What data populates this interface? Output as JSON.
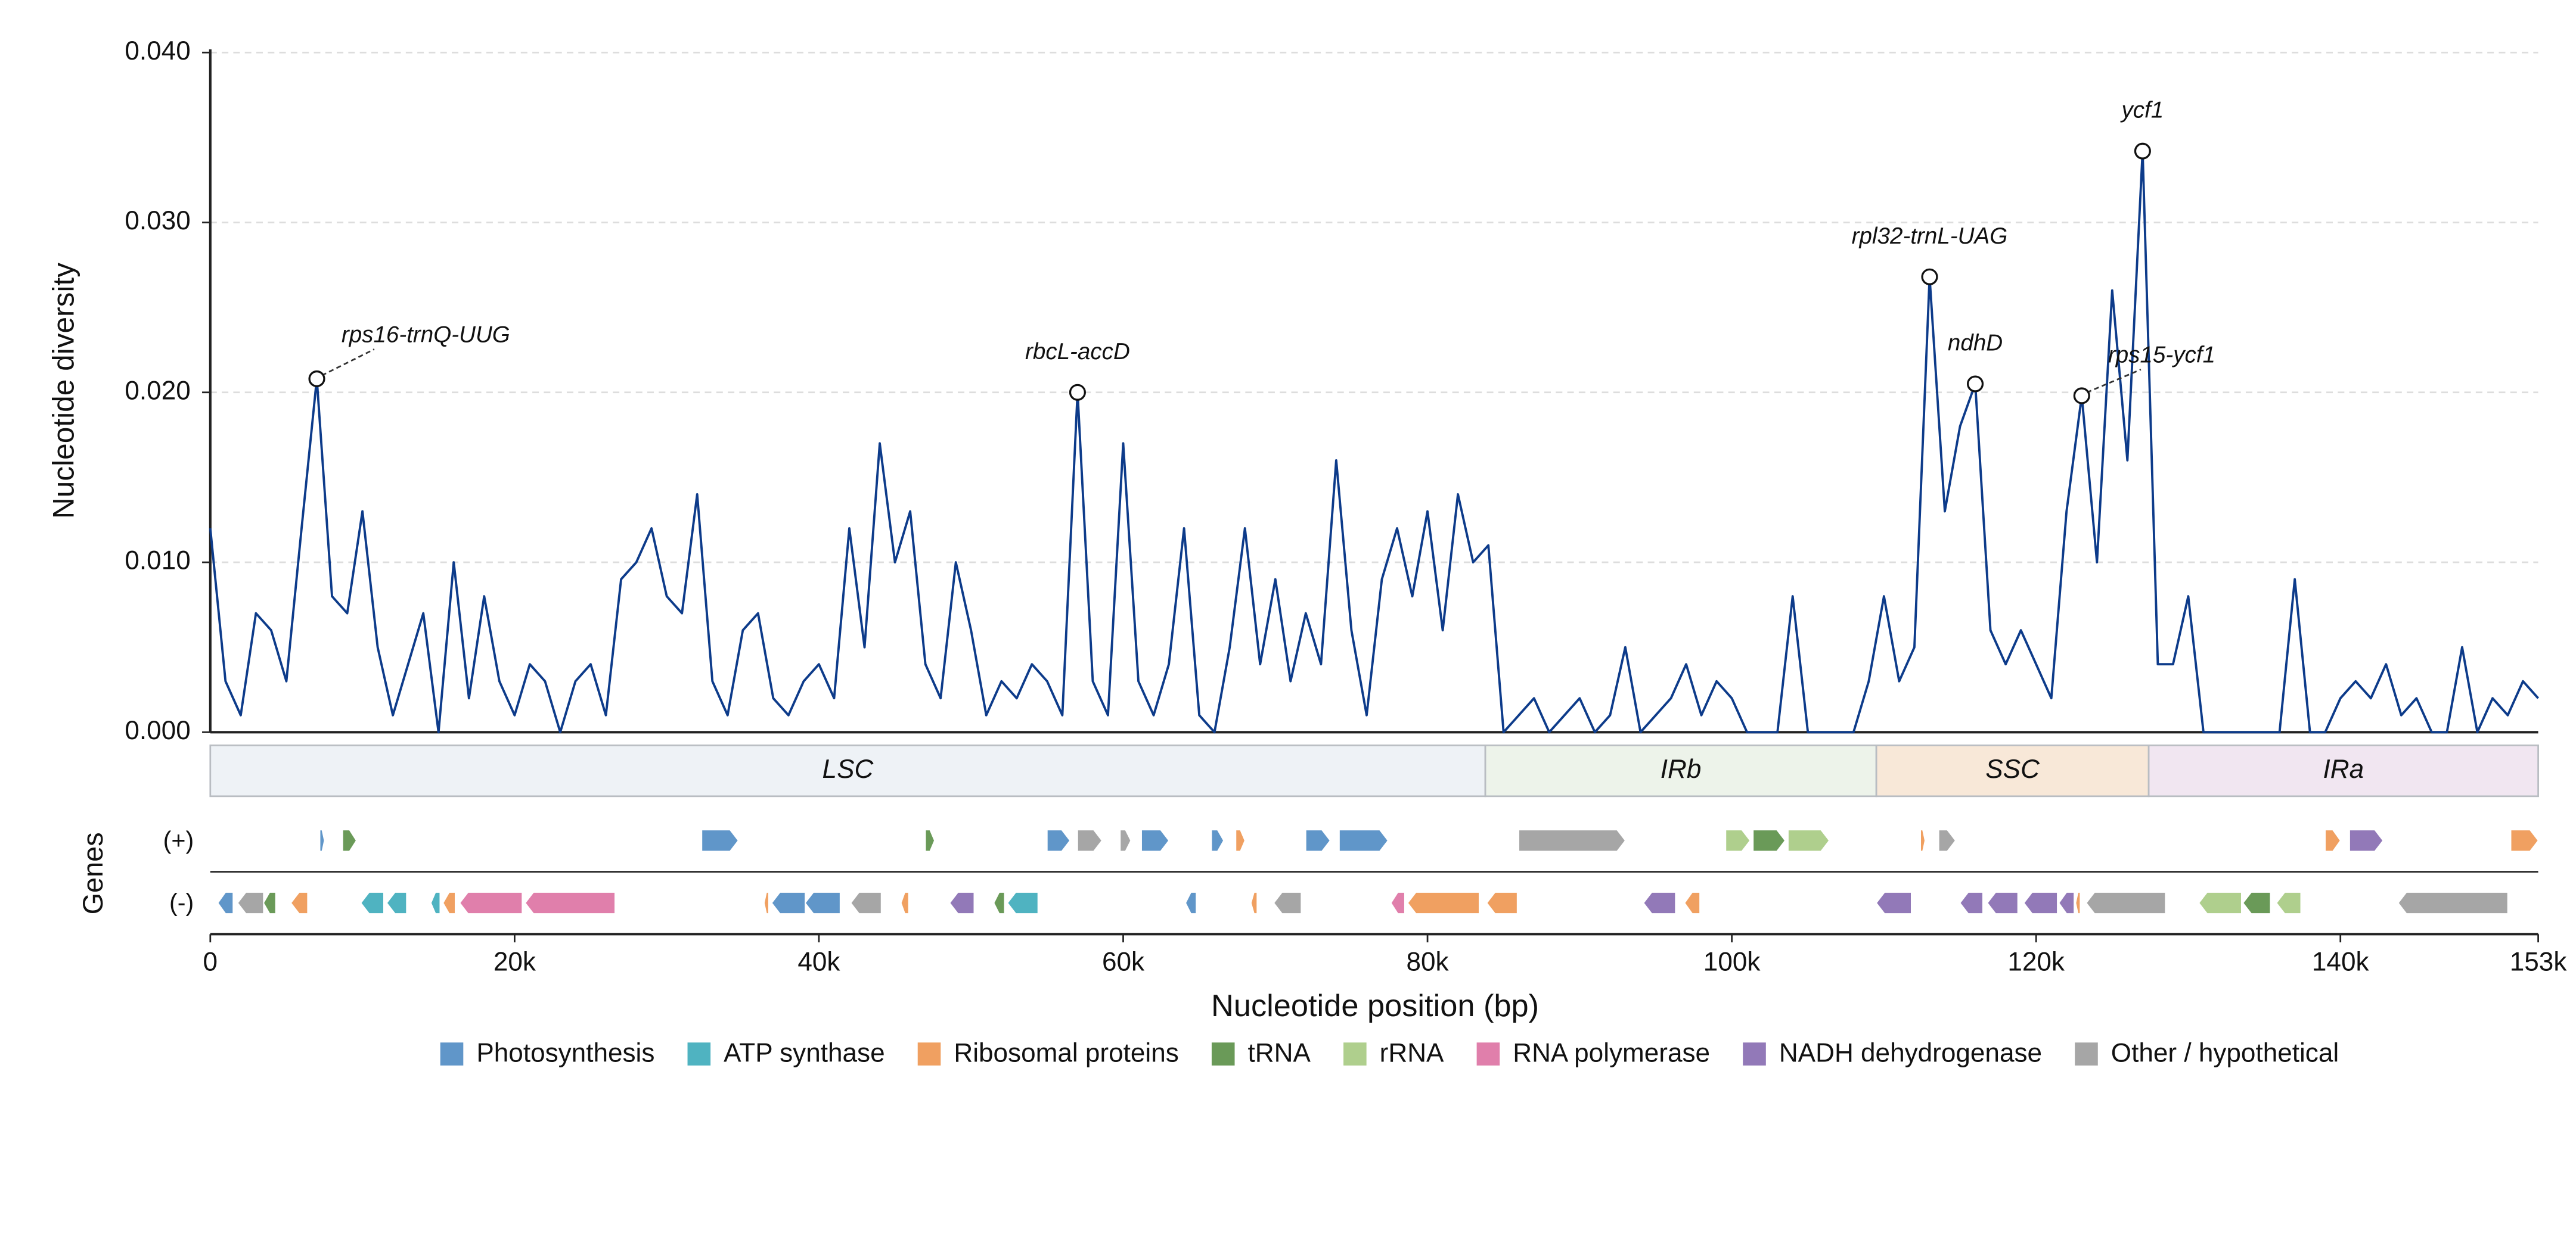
{
  "chart_data": {
    "type": "line",
    "ylabel": "Nucleotide diversity",
    "xlabel": "Nucleotide position (bp)",
    "genes_label": "Genes",
    "strand_labels": [
      "(+)",
      "(-)"
    ],
    "color": "#0d3b8a",
    "xlim": [
      0,
      153000
    ],
    "ylim": [
      0,
      0.04
    ],
    "xticks": [
      0,
      {
        "value": 20000,
        "label": "20k"
      },
      {
        "value": 40000,
        "label": "40k"
      },
      {
        "value": 60000,
        "label": "60k"
      },
      {
        "value": 80000,
        "label": "80k"
      },
      {
        "value": 100000,
        "label": "100k"
      },
      {
        "value": 120000,
        "label": "120k"
      },
      {
        "value": 140000,
        "label": "140k"
      },
      {
        "value": 153000,
        "label": "153k"
      }
    ],
    "yticks": [
      {
        "value": 0,
        "label": "0.000"
      },
      {
        "value": 0.01,
        "label": "0.010"
      },
      {
        "value": 0.02,
        "label": "0.020"
      },
      {
        "value": 0.03,
        "label": "0.030"
      },
      {
        "value": 0.04,
        "label": "0.040"
      }
    ],
    "grid": true,
    "x": [
      0,
      1000,
      2000,
      3000,
      4000,
      5000,
      6000,
      7000,
      8000,
      9000,
      10000,
      11000,
      12000,
      13000,
      14000,
      15000,
      16000,
      17000,
      18000,
      19000,
      20000,
      21000,
      22000,
      23000,
      24000,
      25000,
      26000,
      27000,
      28000,
      29000,
      30000,
      31000,
      32000,
      33000,
      34000,
      35000,
      36000,
      37000,
      38000,
      39000,
      40000,
      41000,
      42000,
      43000,
      44000,
      45000,
      46000,
      47000,
      48000,
      49000,
      50000,
      51000,
      52000,
      53000,
      54000,
      55000,
      56000,
      57000,
      58000,
      59000,
      60000,
      61000,
      62000,
      63000,
      64000,
      65000,
      66000,
      67000,
      68000,
      69000,
      70000,
      71000,
      72000,
      73000,
      74000,
      75000,
      76000,
      77000,
      78000,
      79000,
      80000,
      81000,
      82000,
      83000,
      84000,
      85000,
      86000,
      87000,
      88000,
      89000,
      90000,
      91000,
      92000,
      93000,
      94000,
      95000,
      96000,
      97000,
      98000,
      99000,
      100000,
      101000,
      102000,
      103000,
      104000,
      105000,
      106000,
      107000,
      108000,
      109000,
      110000,
      111000,
      112000,
      113000,
      114000,
      115000,
      116000,
      117000,
      118000,
      119000,
      120000,
      121000,
      122000,
      123000,
      124000,
      125000,
      126000,
      127000,
      128000,
      129000,
      130000,
      131000,
      132000,
      133000,
      134000,
      135000,
      136000,
      137000,
      138000,
      139000,
      140000,
      141000,
      142000,
      143000,
      144000,
      145000,
      146000,
      147000,
      148000,
      149000,
      150000,
      151000,
      152000,
      153000
    ],
    "values": [
      0.012,
      0.003,
      0.001,
      0.007,
      0.006,
      0.003,
      0.012,
      0.0208,
      0.008,
      0.007,
      0.013,
      0.005,
      0.001,
      0.004,
      0.007,
      0,
      0.01,
      0.002,
      0.008,
      0.003,
      0.001,
      0.004,
      0.003,
      0,
      0.003,
      0.004,
      0.001,
      0.009,
      0.01,
      0.012,
      0.008,
      0.007,
      0.014,
      0.003,
      0.001,
      0.006,
      0.007,
      0.002,
      0.001,
      0.003,
      0.004,
      0.002,
      0.012,
      0.005,
      0.017,
      0.01,
      0.013,
      0.004,
      0.002,
      0.01,
      0.006,
      0.001,
      0.003,
      0.002,
      0.004,
      0.003,
      0.001,
      0.02,
      0.003,
      0.001,
      0.017,
      0.003,
      0.001,
      0.004,
      0.012,
      0.001,
      0,
      0.005,
      0.012,
      0.004,
      0.009,
      0.003,
      0.007,
      0.004,
      0.016,
      0.006,
      0.001,
      0.009,
      0.012,
      0.008,
      0.013,
      0.006,
      0.014,
      0.01,
      0.011,
      0,
      0.001,
      0.002,
      0,
      0.001,
      0.002,
      0,
      0.001,
      0.005,
      0,
      0.001,
      0.002,
      0.004,
      0.001,
      0.003,
      0.002,
      0,
      0,
      0,
      0.008,
      0,
      0,
      0,
      0,
      0.003,
      0.008,
      0.003,
      0.005,
      0.0268,
      0.013,
      0.018,
      0.0205,
      0.006,
      0.004,
      0.006,
      0.004,
      0.002,
      0.013,
      0.0198,
      0.01,
      0.026,
      0.016,
      0.0342,
      0.004,
      0.004,
      0.008,
      0,
      0,
      0,
      0,
      0,
      0,
      0.009,
      0,
      0,
      0.002,
      0.003,
      0.002,
      0.004,
      0.001,
      0.002,
      0,
      0,
      0.005,
      0,
      0.002,
      0.001,
      0.003,
      0.002
    ],
    "annotations": [
      {
        "label": "rps16-trnQ-UUG",
        "x": 7000,
        "y": 0.0208
      },
      {
        "label": "rbcL-accD",
        "x": 57000,
        "y": 0.02
      },
      {
        "label": "rpl32-trnL-UAG",
        "x": 113000,
        "y": 0.0268
      },
      {
        "label": "ndhD",
        "x": 116000,
        "y": 0.0205
      },
      {
        "label": "rps15-ycf1",
        "x": 123000,
        "y": 0.0198
      },
      {
        "label": "ycf1",
        "x": 127000,
        "y": 0.0342
      }
    ],
    "regions": [
      {
        "label": "LSC",
        "start": 0,
        "end": 83800,
        "color": "#eef2f6"
      },
      {
        "label": "IRb",
        "start": 83800,
        "end": 109500,
        "color": "#edf3ea"
      },
      {
        "label": "SSC",
        "start": 109500,
        "end": 127400,
        "color": "#f8e8d8"
      },
      {
        "label": "IRa",
        "start": 127400,
        "end": 153000,
        "color": "#f1e6f1"
      }
    ],
    "gene_categories": [
      {
        "name": "Photosynthesis",
        "color": "#6096c9"
      },
      {
        "name": "ATP synthase",
        "color": "#4fb3c1"
      },
      {
        "name": "Ribosomal proteins",
        "color": "#f0a061"
      },
      {
        "name": "tRNA",
        "color": "#6a9a58"
      },
      {
        "name": "rRNA",
        "color": "#afcf8d"
      },
      {
        "name": "RNA polymerase",
        "color": "#e07fab"
      },
      {
        "name": "NADH dehydrogenase",
        "color": "#9279b8"
      },
      {
        "name": "Other / hypothetical",
        "color": "#a6a6a6"
      }
    ],
    "genes": [
      {
        "start": 7200,
        "end": 7500,
        "strand": "+",
        "category": 0
      },
      {
        "start": 8700,
        "end": 9600,
        "strand": "+",
        "category": 3
      },
      {
        "start": 32300,
        "end": 34700,
        "strand": "+",
        "category": 0
      },
      {
        "start": 47000,
        "end": 47600,
        "strand": "+",
        "category": 3
      },
      {
        "start": 55000,
        "end": 56500,
        "strand": "+",
        "category": 0
      },
      {
        "start": 57000,
        "end": 58600,
        "strand": "+",
        "category": 7
      },
      {
        "start": 59800,
        "end": 60500,
        "strand": "+",
        "category": 7
      },
      {
        "start": 61200,
        "end": 63000,
        "strand": "+",
        "category": 0
      },
      {
        "start": 65800,
        "end": 66600,
        "strand": "+",
        "category": 0
      },
      {
        "start": 67400,
        "end": 68000,
        "strand": "+",
        "category": 2
      },
      {
        "start": 72000,
        "end": 73600,
        "strand": "+",
        "category": 0
      },
      {
        "start": 74200,
        "end": 77400,
        "strand": "+",
        "category": 0
      },
      {
        "start": 86000,
        "end": 93000,
        "strand": "+",
        "category": 7
      },
      {
        "start": 99600,
        "end": 101200,
        "strand": "+",
        "category": 4
      },
      {
        "start": 101400,
        "end": 103500,
        "strand": "+",
        "category": 3
      },
      {
        "start": 103700,
        "end": 106400,
        "strand": "+",
        "category": 4
      },
      {
        "start": 112400,
        "end": 112700,
        "strand": "+",
        "category": 2
      },
      {
        "start": 113600,
        "end": 114700,
        "strand": "+",
        "category": 7
      },
      {
        "start": 139000,
        "end": 140000,
        "strand": "+",
        "category": 2
      },
      {
        "start": 140600,
        "end": 142800,
        "strand": "+",
        "category": 6
      },
      {
        "start": 151200,
        "end": 153000,
        "strand": "+",
        "category": 2
      },
      {
        "start": 500,
        "end": 1500,
        "strand": "-",
        "category": 0
      },
      {
        "start": 1800,
        "end": 3500,
        "strand": "-",
        "category": 7
      },
      {
        "start": 3500,
        "end": 4300,
        "strand": "-",
        "category": 3
      },
      {
        "start": 5300,
        "end": 6400,
        "strand": "-",
        "category": 2
      },
      {
        "start": 9900,
        "end": 11400,
        "strand": "-",
        "category": 1
      },
      {
        "start": 11600,
        "end": 12900,
        "strand": "-",
        "category": 1
      },
      {
        "start": 14500,
        "end": 15100,
        "strand": "-",
        "category": 1
      },
      {
        "start": 15300,
        "end": 16100,
        "strand": "-",
        "category": 2
      },
      {
        "start": 16400,
        "end": 20500,
        "strand": "-",
        "category": 5
      },
      {
        "start": 20700,
        "end": 26600,
        "strand": "-",
        "category": 5
      },
      {
        "start": 36400,
        "end": 36700,
        "strand": "-",
        "category": 2
      },
      {
        "start": 36900,
        "end": 39100,
        "strand": "-",
        "category": 0
      },
      {
        "start": 39100,
        "end": 41400,
        "strand": "-",
        "category": 0
      },
      {
        "start": 42100,
        "end": 44100,
        "strand": "-",
        "category": 7
      },
      {
        "start": 45400,
        "end": 45900,
        "strand": "-",
        "category": 2
      },
      {
        "start": 48600,
        "end": 50200,
        "strand": "-",
        "category": 6
      },
      {
        "start": 51500,
        "end": 52200,
        "strand": "-",
        "category": 3
      },
      {
        "start": 52400,
        "end": 54400,
        "strand": "-",
        "category": 1
      },
      {
        "start": 64100,
        "end": 64800,
        "strand": "-",
        "category": 0
      },
      {
        "start": 68400,
        "end": 68800,
        "strand": "-",
        "category": 2
      },
      {
        "start": 69900,
        "end": 71700,
        "strand": "-",
        "category": 7
      },
      {
        "start": 77600,
        "end": 78500,
        "strand": "-",
        "category": 5
      },
      {
        "start": 78700,
        "end": 83400,
        "strand": "-",
        "category": 2
      },
      {
        "start": 83900,
        "end": 85900,
        "strand": "-",
        "category": 2
      },
      {
        "start": 94200,
        "end": 96300,
        "strand": "-",
        "category": 6
      },
      {
        "start": 96900,
        "end": 97900,
        "strand": "-",
        "category": 2
      },
      {
        "start": 109500,
        "end": 111800,
        "strand": "-",
        "category": 6
      },
      {
        "start": 115000,
        "end": 116500,
        "strand": "-",
        "category": 6
      },
      {
        "start": 116800,
        "end": 118800,
        "strand": "-",
        "category": 6
      },
      {
        "start": 119200,
        "end": 121400,
        "strand": "-",
        "category": 6
      },
      {
        "start": 121500,
        "end": 122500,
        "strand": "-",
        "category": 6
      },
      {
        "start": 122600,
        "end": 122900,
        "strand": "-",
        "category": 2
      },
      {
        "start": 123300,
        "end": 128500,
        "strand": "-",
        "category": 7
      },
      {
        "start": 130700,
        "end": 133500,
        "strand": "-",
        "category": 4
      },
      {
        "start": 133600,
        "end": 135400,
        "strand": "-",
        "category": 3
      },
      {
        "start": 135800,
        "end": 137400,
        "strand": "-",
        "category": 4
      },
      {
        "start": 143800,
        "end": 151000,
        "strand": "-",
        "category": 7
      }
    ]
  }
}
